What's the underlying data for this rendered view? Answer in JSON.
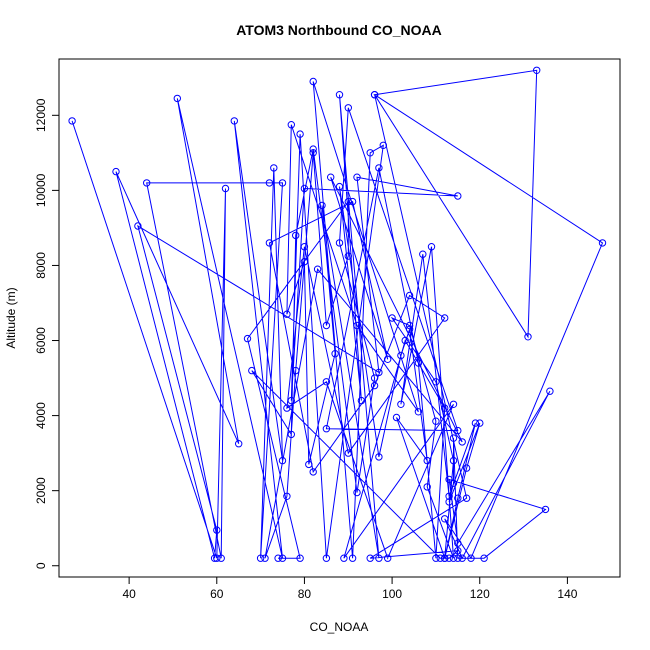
{
  "chart_data": {
    "type": "line",
    "title": "ATOM3 Northbound CO_NOAA",
    "xlabel": "CO_NOAA",
    "ylabel": "Altitude (m)",
    "xlim": [
      24,
      152
    ],
    "ylim": [
      -300,
      13500
    ],
    "x_ticks": [
      40,
      60,
      80,
      100,
      120,
      140
    ],
    "y_ticks": [
      0,
      2000,
      4000,
      6000,
      8000,
      10000,
      12000
    ],
    "line_color": "#0000ff",
    "marker": "open-circle",
    "grid": false,
    "series": [
      {
        "points": [
          [
            27,
            11850
          ],
          [
            60,
            200
          ],
          [
            62,
            10050
          ],
          [
            61,
            200
          ],
          [
            44,
            10200
          ],
          [
            72,
            10200
          ],
          [
            75,
            10200
          ],
          [
            70,
            200
          ],
          [
            73,
            10600
          ],
          [
            75,
            2800
          ],
          [
            64,
            11850
          ],
          [
            75,
            200
          ],
          [
            51,
            12450
          ],
          [
            65,
            3250
          ],
          [
            37,
            10500
          ],
          [
            59.5,
            200
          ],
          [
            60,
            950
          ],
          [
            42,
            9050
          ],
          [
            97,
            5150
          ],
          [
            92,
            10350
          ],
          [
            115,
            9850
          ],
          [
            80,
            10050
          ],
          [
            77,
            4400
          ],
          [
            79,
            11500
          ],
          [
            85,
            200
          ],
          [
            98,
            11200
          ],
          [
            95,
            11000
          ],
          [
            91,
            200
          ],
          [
            82,
            12900
          ],
          [
            106,
            4100
          ],
          [
            92,
            6400
          ],
          [
            77,
            11750
          ],
          [
            76,
            6700
          ],
          [
            80,
            8100
          ],
          [
            81,
            2700
          ],
          [
            87,
            5650
          ],
          [
            84,
            9600
          ],
          [
            97,
            200
          ],
          [
            88,
            12550
          ],
          [
            93,
            4400
          ],
          [
            88,
            10100
          ],
          [
            97,
            2900
          ],
          [
            102,
            5600
          ],
          [
            104,
            6300
          ],
          [
            108,
            2800
          ],
          [
            101,
            3950
          ],
          [
            112,
            200
          ],
          [
            114,
            2800
          ],
          [
            110,
            4900
          ],
          [
            100,
            6600
          ],
          [
            104,
            6400
          ],
          [
            110,
            3850
          ],
          [
            108,
            2100
          ],
          [
            114,
            200
          ],
          [
            109,
            8500
          ],
          [
            102,
            4300
          ],
          [
            107,
            8300
          ],
          [
            113,
            1850
          ],
          [
            119,
            3800
          ],
          [
            115,
            1800
          ],
          [
            112,
            200
          ],
          [
            117,
            2600
          ],
          [
            120,
            3800
          ],
          [
            113,
            1700
          ],
          [
            114,
            2200
          ],
          [
            114,
            3400
          ],
          [
            115,
            200
          ],
          [
            121,
            200
          ],
          [
            135,
            1500
          ],
          [
            113,
            2300
          ],
          [
            115,
            600
          ],
          [
            136,
            4650
          ],
          [
            116,
            200
          ],
          [
            112,
            1250
          ],
          [
            118,
            200
          ],
          [
            148,
            8600
          ],
          [
            96,
            12550
          ],
          [
            133,
            13200
          ],
          [
            131,
            6100
          ],
          [
            96,
            12550
          ],
          [
            117,
            1800
          ],
          [
            95,
            200
          ],
          [
            115,
            400
          ],
          [
            113,
            200
          ],
          [
            111,
            200
          ],
          [
            68,
            5200
          ],
          [
            77,
            3500
          ],
          [
            78,
            8800
          ],
          [
            82,
            11100
          ],
          [
            92,
            1950
          ],
          [
            96,
            5000
          ],
          [
            88,
            8600
          ],
          [
            90,
            12200
          ],
          [
            115,
            3600
          ],
          [
            85,
            3650
          ],
          [
            97,
            10600
          ],
          [
            106,
            5400
          ],
          [
            110,
            200
          ],
          [
            112,
            4200
          ],
          [
            103,
            6000
          ],
          [
            89,
            200
          ],
          [
            114,
            4300
          ],
          [
            99,
            200
          ],
          [
            85,
            4900
          ],
          [
            76,
            4200
          ],
          [
            80,
            8500
          ],
          [
            90,
            3000
          ],
          [
            112,
            6600
          ],
          [
            104,
            7200
          ],
          [
            96,
            4800
          ],
          [
            82,
            2500
          ],
          [
            72,
            8600
          ],
          [
            91,
            9700
          ],
          [
            99,
            5500
          ],
          [
            86,
            10350
          ],
          [
            116,
            3300
          ],
          [
            83,
            7900
          ],
          [
            71,
            200
          ],
          [
            76,
            1850
          ],
          [
            78,
            5200
          ],
          [
            82,
            11000
          ],
          [
            85,
            6400
          ],
          [
            90,
            8250
          ],
          [
            90,
            9700
          ],
          [
            67,
            6050
          ],
          [
            79,
            200
          ],
          [
            74,
            200
          ]
        ]
      }
    ]
  }
}
